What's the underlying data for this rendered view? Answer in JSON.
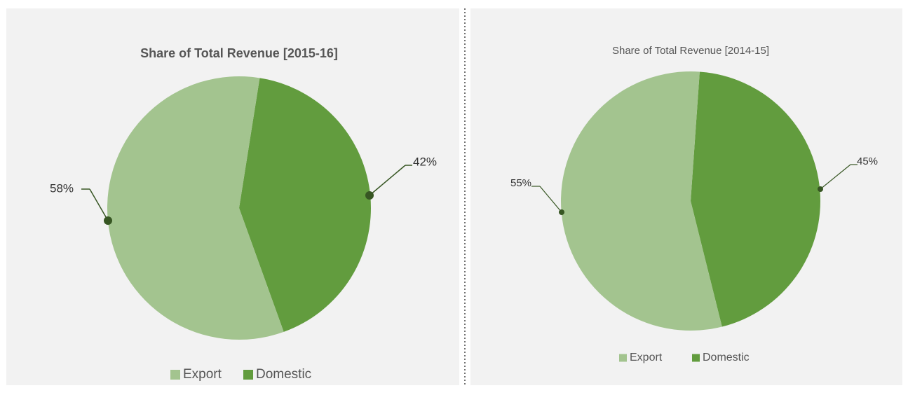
{
  "chart_data": [
    {
      "type": "pie",
      "title": "Share of Total Revenue [2015-16]",
      "categories": [
        "Export",
        "Domestic"
      ],
      "values": [
        58,
        42
      ],
      "value_labels": [
        "58%",
        "42%"
      ],
      "colors": [
        "#a3c48f",
        "#629c3e"
      ],
      "legend": "bottom"
    },
    {
      "type": "pie",
      "title": "Share of Total Revenue [2014-15]",
      "categories": [
        "Export",
        "Domestic"
      ],
      "values": [
        55,
        45
      ],
      "value_labels": [
        "55%",
        "45%"
      ],
      "colors": [
        "#a3c48f",
        "#629c3e"
      ],
      "legend": "bottom"
    }
  ]
}
